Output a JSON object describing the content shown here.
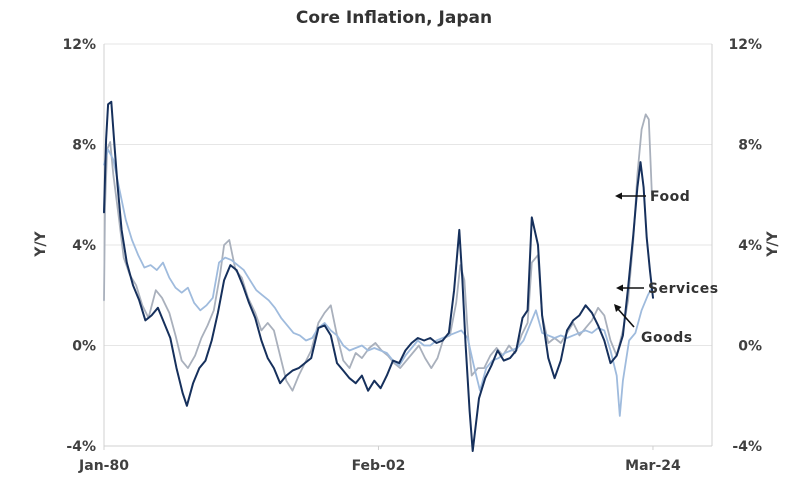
{
  "chart_data": {
    "type": "line",
    "title": "Core Inflation, Japan",
    "ylabel_left": "Y/Y",
    "ylabel_right": "Y/Y",
    "y_unit": "%",
    "ylim": [
      -4,
      12
    ],
    "yticks": [
      "-4%",
      "0%",
      "4%",
      "8%",
      "12%"
    ],
    "yticks_right": [
      "-4%",
      "0%",
      "4%",
      "8%",
      "12%"
    ],
    "x_tick_labels": [
      "Jan-80",
      "Feb-02",
      "Mar-24"
    ],
    "xlim": [
      "1980-01",
      "2028-12"
    ],
    "x_ticks": [
      "1980-01",
      "2002-02",
      "2024-03"
    ],
    "grid": true,
    "series": [
      {
        "name": "Food",
        "color": "#a9b0bc",
        "points": [
          [
            "1980-01",
            1.8
          ],
          [
            "1980-02",
            5.5
          ],
          [
            "1980-04",
            7.8
          ],
          [
            "1980-07",
            8.1
          ],
          [
            "1980-10",
            6.8
          ],
          [
            "1981-03",
            5.2
          ],
          [
            "1981-08",
            3.5
          ],
          [
            "1982-02",
            2.8
          ],
          [
            "1982-08",
            2.4
          ],
          [
            "1983-02",
            1.6
          ],
          [
            "1983-08",
            1.1
          ],
          [
            "1984-03",
            2.2
          ],
          [
            "1984-09",
            1.9
          ],
          [
            "1985-04",
            1.3
          ],
          [
            "1985-10",
            0.4
          ],
          [
            "1986-04",
            -0.6
          ],
          [
            "1986-10",
            -0.9
          ],
          [
            "1987-05",
            -0.4
          ],
          [
            "1987-11",
            0.3
          ],
          [
            "1988-05",
            0.8
          ],
          [
            "1988-11",
            1.4
          ],
          [
            "1989-05",
            2.8
          ],
          [
            "1989-09",
            4.0
          ],
          [
            "1990-02",
            4.2
          ],
          [
            "1990-08",
            3.0
          ],
          [
            "1991-02",
            2.7
          ],
          [
            "1991-08",
            1.9
          ],
          [
            "1992-03",
            1.3
          ],
          [
            "1992-09",
            0.6
          ],
          [
            "1993-03",
            0.9
          ],
          [
            "1993-09",
            0.6
          ],
          [
            "1994-03",
            -0.4
          ],
          [
            "1994-09",
            -1.4
          ],
          [
            "1995-03",
            -1.8
          ],
          [
            "1995-09",
            -1.2
          ],
          [
            "1996-03",
            -0.7
          ],
          [
            "1996-09",
            -0.2
          ],
          [
            "1997-04",
            0.9
          ],
          [
            "1997-10",
            1.3
          ],
          [
            "1998-04",
            1.6
          ],
          [
            "1998-10",
            0.4
          ],
          [
            "1999-04",
            -0.6
          ],
          [
            "1999-10",
            -0.9
          ],
          [
            "2000-04",
            -0.3
          ],
          [
            "2000-10",
            -0.5
          ],
          [
            "2001-05",
            -0.1
          ],
          [
            "2001-11",
            0.1
          ],
          [
            "2002-05",
            -0.2
          ],
          [
            "2002-11",
            -0.4
          ],
          [
            "2003-05",
            -0.7
          ],
          [
            "2003-11",
            -0.9
          ],
          [
            "2004-05",
            -0.6
          ],
          [
            "2004-11",
            -0.3
          ],
          [
            "2005-05",
            0.0
          ],
          [
            "2005-11",
            -0.5
          ],
          [
            "2006-05",
            -0.9
          ],
          [
            "2006-11",
            -0.5
          ],
          [
            "2007-05",
            0.3
          ],
          [
            "2007-11",
            0.4
          ],
          [
            "2008-05",
            1.7
          ],
          [
            "2008-09",
            3.2
          ],
          [
            "2009-01",
            2.6
          ],
          [
            "2009-04",
            0.6
          ],
          [
            "2009-08",
            -1.2
          ],
          [
            "2010-02",
            -0.9
          ],
          [
            "2010-08",
            -0.9
          ],
          [
            "2011-02",
            -0.4
          ],
          [
            "2011-08",
            -0.1
          ],
          [
            "2012-02",
            -0.4
          ],
          [
            "2012-08",
            0.0
          ],
          [
            "2013-02",
            -0.3
          ],
          [
            "2013-08",
            0.4
          ],
          [
            "2014-02",
            0.9
          ],
          [
            "2014-06",
            3.3
          ],
          [
            "2014-12",
            3.6
          ],
          [
            "2015-04",
            1.2
          ],
          [
            "2015-10",
            0.1
          ],
          [
            "2016-04",
            0.3
          ],
          [
            "2016-10",
            0.1
          ],
          [
            "2017-04",
            0.5
          ],
          [
            "2017-10",
            0.9
          ],
          [
            "2018-04",
            0.4
          ],
          [
            "2018-10",
            0.7
          ],
          [
            "2019-04",
            1.0
          ],
          [
            "2019-10",
            1.5
          ],
          [
            "2020-04",
            1.2
          ],
          [
            "2020-10",
            0.2
          ],
          [
            "2021-04",
            -0.4
          ],
          [
            "2021-10",
            0.6
          ],
          [
            "2022-03",
            1.8
          ],
          [
            "2022-08",
            4.2
          ],
          [
            "2022-12",
            6.8
          ],
          [
            "2023-04",
            8.6
          ],
          [
            "2023-08",
            9.2
          ],
          [
            "2023-11",
            9.0
          ],
          [
            "2024-02",
            6.0
          ]
        ]
      },
      {
        "name": "Services",
        "color": "#9fbbdd",
        "points": [
          [
            "1980-01",
            7.2
          ],
          [
            "1980-05",
            7.8
          ],
          [
            "1980-10",
            7.4
          ],
          [
            "1981-04",
            6.2
          ],
          [
            "1981-10",
            5.0
          ],
          [
            "1982-04",
            4.2
          ],
          [
            "1982-10",
            3.6
          ],
          [
            "1983-04",
            3.1
          ],
          [
            "1983-10",
            3.2
          ],
          [
            "1984-04",
            3.0
          ],
          [
            "1984-10",
            3.3
          ],
          [
            "1985-04",
            2.7
          ],
          [
            "1985-10",
            2.3
          ],
          [
            "1986-04",
            2.1
          ],
          [
            "1986-10",
            2.3
          ],
          [
            "1987-04",
            1.7
          ],
          [
            "1987-10",
            1.4
          ],
          [
            "1988-04",
            1.6
          ],
          [
            "1988-10",
            1.9
          ],
          [
            "1989-04",
            3.3
          ],
          [
            "1989-10",
            3.5
          ],
          [
            "1990-04",
            3.4
          ],
          [
            "1990-10",
            3.2
          ],
          [
            "1991-04",
            3.0
          ],
          [
            "1991-10",
            2.6
          ],
          [
            "1992-04",
            2.2
          ],
          [
            "1992-10",
            2.0
          ],
          [
            "1993-04",
            1.8
          ],
          [
            "1993-10",
            1.5
          ],
          [
            "1994-04",
            1.1
          ],
          [
            "1994-10",
            0.8
          ],
          [
            "1995-04",
            0.5
          ],
          [
            "1995-10",
            0.4
          ],
          [
            "1996-04",
            0.2
          ],
          [
            "1996-10",
            0.3
          ],
          [
            "1997-04",
            0.7
          ],
          [
            "1997-10",
            0.9
          ],
          [
            "1998-04",
            0.6
          ],
          [
            "1998-10",
            0.4
          ],
          [
            "1999-04",
            0.0
          ],
          [
            "1999-10",
            -0.2
          ],
          [
            "2000-04",
            -0.1
          ],
          [
            "2000-10",
            0.0
          ],
          [
            "2001-04",
            -0.2
          ],
          [
            "2001-10",
            -0.1
          ],
          [
            "2002-04",
            -0.2
          ],
          [
            "2002-10",
            -0.3
          ],
          [
            "2003-04",
            -0.6
          ],
          [
            "2003-10",
            -0.8
          ],
          [
            "2004-04",
            -0.4
          ],
          [
            "2004-10",
            -0.1
          ],
          [
            "2005-04",
            0.2
          ],
          [
            "2005-10",
            0.0
          ],
          [
            "2006-04",
            0.0
          ],
          [
            "2006-10",
            0.2
          ],
          [
            "2007-04",
            0.3
          ],
          [
            "2007-10",
            0.4
          ],
          [
            "2008-04",
            0.5
          ],
          [
            "2008-10",
            0.6
          ],
          [
            "2009-04",
            0.3
          ],
          [
            "2009-10",
            -0.8
          ],
          [
            "2010-04",
            -1.8
          ],
          [
            "2010-10",
            -0.9
          ],
          [
            "2011-04",
            -0.6
          ],
          [
            "2011-10",
            -0.5
          ],
          [
            "2012-04",
            -0.3
          ],
          [
            "2012-10",
            -0.2
          ],
          [
            "2013-04",
            -0.1
          ],
          [
            "2013-10",
            0.2
          ],
          [
            "2014-04",
            0.8
          ],
          [
            "2014-10",
            1.4
          ],
          [
            "2015-04",
            0.5
          ],
          [
            "2015-10",
            0.4
          ],
          [
            "2016-04",
            0.3
          ],
          [
            "2016-10",
            0.4
          ],
          [
            "2017-04",
            0.3
          ],
          [
            "2017-10",
            0.4
          ],
          [
            "2018-04",
            0.5
          ],
          [
            "2018-10",
            0.6
          ],
          [
            "2019-04",
            0.5
          ],
          [
            "2019-10",
            0.7
          ],
          [
            "2020-04",
            0.6
          ],
          [
            "2020-10",
            -0.2
          ],
          [
            "2021-04",
            -1.2
          ],
          [
            "2021-07",
            -2.8
          ],
          [
            "2021-10",
            -1.4
          ],
          [
            "2022-04",
            0.2
          ],
          [
            "2022-10",
            0.5
          ],
          [
            "2023-04",
            1.4
          ],
          [
            "2023-10",
            2.0
          ],
          [
            "2024-02",
            2.3
          ]
        ]
      },
      {
        "name": "Goods",
        "color": "#16305c",
        "points": [
          [
            "1980-01",
            5.3
          ],
          [
            "1980-03",
            8.2
          ],
          [
            "1980-05",
            9.6
          ],
          [
            "1980-08",
            9.7
          ],
          [
            "1980-11",
            8.0
          ],
          [
            "1981-02",
            6.4
          ],
          [
            "1981-06",
            4.6
          ],
          [
            "1981-11",
            3.3
          ],
          [
            "1982-05",
            2.4
          ],
          [
            "1982-11",
            1.8
          ],
          [
            "1983-05",
            1.0
          ],
          [
            "1983-11",
            1.2
          ],
          [
            "1984-05",
            1.5
          ],
          [
            "1984-11",
            0.9
          ],
          [
            "1985-05",
            0.3
          ],
          [
            "1985-11",
            -0.9
          ],
          [
            "1986-05",
            -1.9
          ],
          [
            "1986-09",
            -2.4
          ],
          [
            "1987-03",
            -1.5
          ],
          [
            "1987-09",
            -0.9
          ],
          [
            "1988-03",
            -0.6
          ],
          [
            "1988-09",
            0.2
          ],
          [
            "1989-03",
            1.3
          ],
          [
            "1989-09",
            2.6
          ],
          [
            "1990-03",
            3.2
          ],
          [
            "1990-09",
            3.0
          ],
          [
            "1991-03",
            2.4
          ],
          [
            "1991-09",
            1.7
          ],
          [
            "1992-03",
            1.1
          ],
          [
            "1992-09",
            0.2
          ],
          [
            "1993-03",
            -0.5
          ],
          [
            "1993-09",
            -0.9
          ],
          [
            "1994-03",
            -1.5
          ],
          [
            "1994-09",
            -1.2
          ],
          [
            "1995-03",
            -1.0
          ],
          [
            "1995-09",
            -0.9
          ],
          [
            "1996-03",
            -0.7
          ],
          [
            "1996-09",
            -0.5
          ],
          [
            "1997-04",
            0.7
          ],
          [
            "1997-10",
            0.8
          ],
          [
            "1998-04",
            0.4
          ],
          [
            "1998-10",
            -0.7
          ],
          [
            "1999-04",
            -1.0
          ],
          [
            "1999-10",
            -1.3
          ],
          [
            "2000-04",
            -1.5
          ],
          [
            "2000-10",
            -1.2
          ],
          [
            "2001-04",
            -1.8
          ],
          [
            "2001-10",
            -1.4
          ],
          [
            "2002-04",
            -1.7
          ],
          [
            "2002-10",
            -1.2
          ],
          [
            "2003-04",
            -0.6
          ],
          [
            "2003-10",
            -0.7
          ],
          [
            "2004-04",
            -0.2
          ],
          [
            "2004-10",
            0.1
          ],
          [
            "2005-04",
            0.3
          ],
          [
            "2005-10",
            0.2
          ],
          [
            "2006-04",
            0.3
          ],
          [
            "2006-10",
            0.1
          ],
          [
            "2007-04",
            0.2
          ],
          [
            "2007-10",
            0.5
          ],
          [
            "2008-03",
            2.2
          ],
          [
            "2008-08",
            4.6
          ],
          [
            "2008-11",
            2.6
          ],
          [
            "2009-02",
            0.1
          ],
          [
            "2009-06",
            -2.6
          ],
          [
            "2009-09",
            -4.2
          ],
          [
            "2010-03",
            -2.1
          ],
          [
            "2010-09",
            -1.3
          ],
          [
            "2011-03",
            -0.8
          ],
          [
            "2011-09",
            -0.2
          ],
          [
            "2012-03",
            -0.6
          ],
          [
            "2012-09",
            -0.5
          ],
          [
            "2013-03",
            -0.2
          ],
          [
            "2013-09",
            1.1
          ],
          [
            "2014-02",
            1.4
          ],
          [
            "2014-06",
            5.1
          ],
          [
            "2014-12",
            4.0
          ],
          [
            "2015-04",
            1.2
          ],
          [
            "2015-10",
            -0.5
          ],
          [
            "2016-04",
            -1.3
          ],
          [
            "2016-10",
            -0.6
          ],
          [
            "2017-04",
            0.6
          ],
          [
            "2017-10",
            1.0
          ],
          [
            "2018-04",
            1.2
          ],
          [
            "2018-10",
            1.6
          ],
          [
            "2019-04",
            1.3
          ],
          [
            "2019-10",
            0.8
          ],
          [
            "2020-04",
            0.2
          ],
          [
            "2020-10",
            -0.7
          ],
          [
            "2021-04",
            -0.4
          ],
          [
            "2021-10",
            0.4
          ],
          [
            "2022-03",
            2.3
          ],
          [
            "2022-08",
            4.4
          ],
          [
            "2022-12",
            6.3
          ],
          [
            "2023-03",
            7.3
          ],
          [
            "2023-06",
            6.3
          ],
          [
            "2023-09",
            4.3
          ],
          [
            "2023-12",
            3.0
          ],
          [
            "2024-03",
            1.9
          ]
        ]
      }
    ],
    "annotations": [
      {
        "text": "Food",
        "target": "Food"
      },
      {
        "text": "Services",
        "target": "Services"
      },
      {
        "text": "Goods",
        "target": "Goods"
      }
    ]
  }
}
